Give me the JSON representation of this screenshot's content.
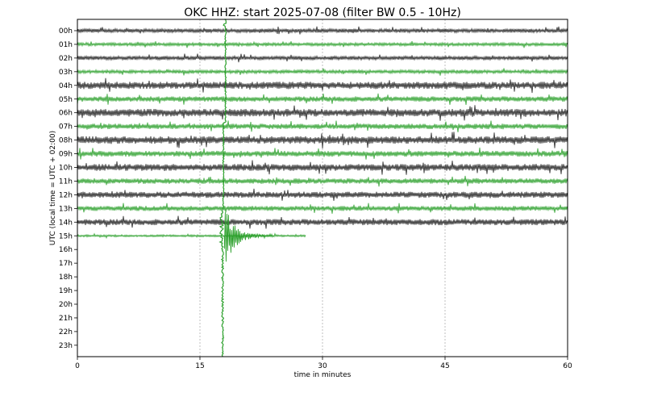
{
  "chart_data": {
    "type": "line",
    "title": "OKC HHZ: start 2025-07-08 (filter BW 0.5 - 10Hz)",
    "xlabel": "time in minutes",
    "ylabel": "UTC (local time = UTC + 02:00)",
    "xlim": [
      0,
      60
    ],
    "x_ticks": [
      0,
      15,
      30,
      45,
      60
    ],
    "x_tick_labels": [
      "0",
      "15",
      "30",
      "45",
      "60"
    ],
    "vertical_grid": true,
    "hours": [
      "00h",
      "01h",
      "02h",
      "03h",
      "04h",
      "05h",
      "06h",
      "07h",
      "08h",
      "09h",
      "10h",
      "11h",
      "12h",
      "13h",
      "14h",
      "15h",
      "16h",
      "17h",
      "18h",
      "19h",
      "20h",
      "21h",
      "22h",
      "23h"
    ],
    "trace_colors": [
      "#222222",
      "#2ca02c"
    ],
    "trace_amplitude": [
      0.22,
      0.18,
      0.22,
      0.2,
      0.4,
      0.3,
      0.42,
      0.3,
      0.42,
      0.32,
      0.38,
      0.3,
      0.34,
      0.28,
      0.34,
      0.12
    ],
    "recorded_until_minute": [
      60,
      60,
      60,
      60,
      60,
      60,
      60,
      60,
      60,
      60,
      60,
      60,
      60,
      60,
      60,
      28
    ],
    "event": {
      "hour": 15,
      "minute": 18
    }
  }
}
